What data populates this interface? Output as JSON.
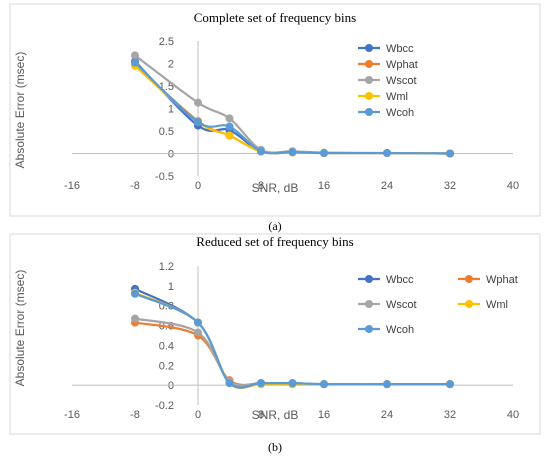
{
  "chart_data": [
    {
      "type": "line",
      "title": "Complete set of frequency bins",
      "caption": "(a)",
      "xlabel": "SNR, dB",
      "ylabel": "Absolute Error (msec)",
      "xlim": [
        -16,
        40
      ],
      "ylim": [
        -0.5,
        2.5
      ],
      "xticks": [
        "-16",
        "-8",
        "0",
        "8",
        "16",
        "24",
        "32",
        "40"
      ],
      "xtick_values": [
        -16,
        -8,
        0,
        8,
        16,
        24,
        32,
        40
      ],
      "yticks": [
        "-0.5",
        "0",
        "0.5",
        "1",
        "1.5",
        "2",
        "2.5"
      ],
      "ytick_values": [
        -0.5,
        0,
        0.5,
        1,
        1.5,
        2,
        2.5
      ],
      "grid": false,
      "legend_position": "right",
      "x": [
        -8,
        0,
        4,
        8,
        12,
        16,
        24,
        32
      ],
      "series": [
        {
          "name": "Wbcc",
          "color": "#4472C4",
          "values": [
            2.05,
            0.62,
            0.52,
            0.05,
            0.03,
            0.01,
            0.01,
            0.0
          ]
        },
        {
          "name": "Wphat",
          "color": "#ED7D31",
          "values": [
            1.97,
            0.72,
            0.4,
            0.05,
            0.03,
            0.01,
            0.01,
            0.0
          ]
        },
        {
          "name": "Wscot",
          "color": "#A5A5A5",
          "values": [
            2.18,
            1.13,
            0.78,
            0.08,
            0.05,
            0.02,
            0.01,
            0.0
          ]
        },
        {
          "name": "Wml",
          "color": "#FFC000",
          "values": [
            1.95,
            0.7,
            0.4,
            0.04,
            0.02,
            0.01,
            0.01,
            0.0
          ]
        },
        {
          "name": "Wcoh",
          "color": "#5B9BD5",
          "values": [
            2.02,
            0.7,
            0.6,
            0.05,
            0.03,
            0.01,
            0.01,
            0.0
          ]
        }
      ]
    },
    {
      "type": "line",
      "title": "Reduced set of frequency bins",
      "caption": "(b)",
      "xlabel": "SNR, dB",
      "ylabel": "Absolute Error (msec)",
      "xlim": [
        -16,
        40
      ],
      "ylim": [
        -0.2,
        1.2
      ],
      "xticks": [
        "-16",
        "-8",
        "0",
        "8",
        "16",
        "24",
        "32",
        "40"
      ],
      "xtick_values": [
        -16,
        -8,
        0,
        8,
        16,
        24,
        32,
        40
      ],
      "yticks": [
        "-0.2",
        "0",
        "0.2",
        "0.4",
        "0.6",
        "0.8",
        "1",
        "1.2"
      ],
      "ytick_values": [
        -0.2,
        0,
        0.2,
        0.4,
        0.6,
        0.8,
        1.0,
        1.2
      ],
      "grid": false,
      "legend_position": "right",
      "x": [
        -8,
        0,
        4,
        8,
        12,
        16,
        24,
        32
      ],
      "series": [
        {
          "name": "Wbcc",
          "color": "#4472C4",
          "values": [
            0.97,
            0.63,
            0.03,
            0.02,
            0.02,
            0.01,
            0.01,
            0.01
          ]
        },
        {
          "name": "Wphat",
          "color": "#ED7D31",
          "values": [
            0.63,
            0.5,
            0.05,
            0.01,
            0.01,
            0.01,
            0.01,
            0.01
          ]
        },
        {
          "name": "Wscot",
          "color": "#A5A5A5",
          "values": [
            0.67,
            0.53,
            0.04,
            0.02,
            0.01,
            0.01,
            0.01,
            0.01
          ]
        },
        {
          "name": "Wml",
          "color": "#FFC000",
          "values": [
            0.93,
            0.63,
            0.02,
            0.01,
            0.01,
            0.01,
            0.01,
            0.01
          ]
        },
        {
          "name": "Wcoh",
          "color": "#5B9BD5",
          "values": [
            0.92,
            0.63,
            0.02,
            0.02,
            0.02,
            0.01,
            0.01,
            0.01
          ]
        }
      ]
    }
  ]
}
